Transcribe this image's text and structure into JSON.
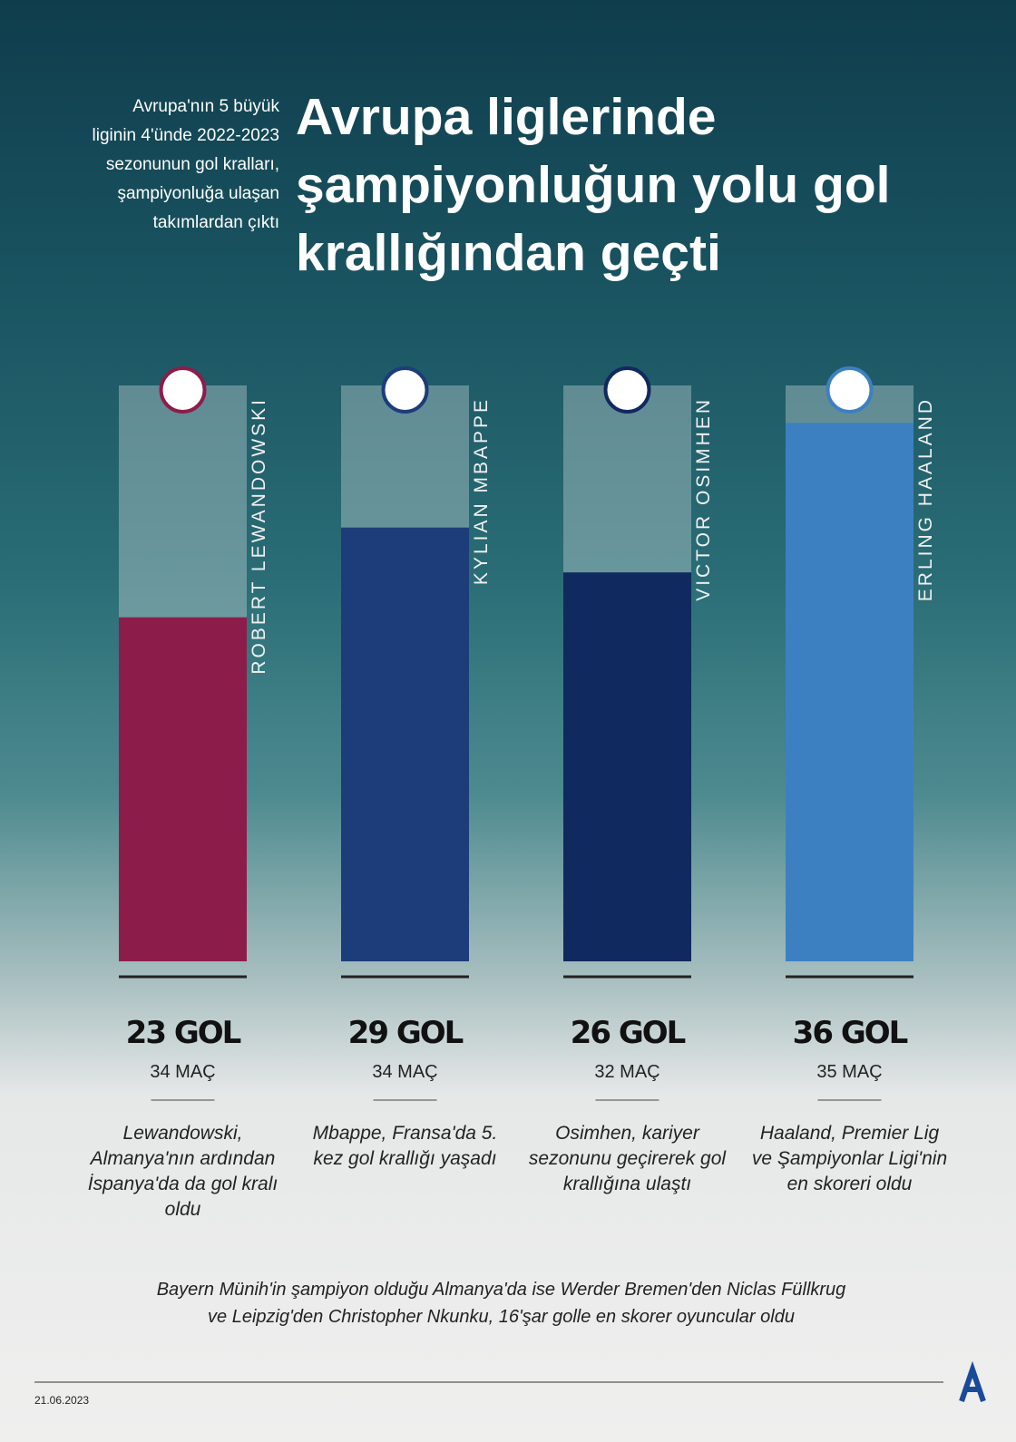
{
  "chart_data": {
    "type": "bar",
    "title": [
      "Avrupa liglerinde",
      "şampiyonluğun yolu gol",
      "krallığından geçti"
    ],
    "subtitle": [
      "Avrupa'nın 5 büyük",
      "liginin 4'ünde 2022-2023",
      "sezonunun gol kralları,",
      "şampiyonluğa ulaşan",
      "takımlardan çıktı"
    ],
    "categories": [
      "ROBERT LEWANDOWSKI",
      "KYLIAN MBAPPE",
      "VICTOR OSIMHEN",
      "ERLING HAALAND"
    ],
    "values": [
      23,
      29,
      26,
      36
    ],
    "value_labels": [
      "23 GOL",
      "29 GOL",
      "26 GOL",
      "36 GOL"
    ],
    "colors": [
      "#8c1d4a",
      "#1c3c7a",
      "#10295e",
      "#3d80c2"
    ],
    "ylim": [
      0,
      38.5
    ],
    "matches": [
      "34 MAÇ",
      "34 MAÇ",
      "32 MAÇ",
      "35 MAÇ"
    ],
    "notes": [
      "Lewandowski, Almanya'nın ardından İspanya'da da gol kralı oldu",
      "Mbappe, Fransa'da 5. kez gol krallığı yaşadı",
      "Osimhen, kariyer sezonunu geçirerek gol krallığına ulaştı",
      "Haaland, Premier Lig ve Şampiyonlar Ligi'nin en skoreri oldu"
    ],
    "footnote": [
      "Bayern Münih'in şampiyon olduğu Almanya'da ise Werder Bremen'den Niclas Füllkrug",
      "ve Leipzig'den Christopher Nkunku, 16'şar golle en skorer oyuncular oldu"
    ],
    "date": "21.06.2023"
  }
}
